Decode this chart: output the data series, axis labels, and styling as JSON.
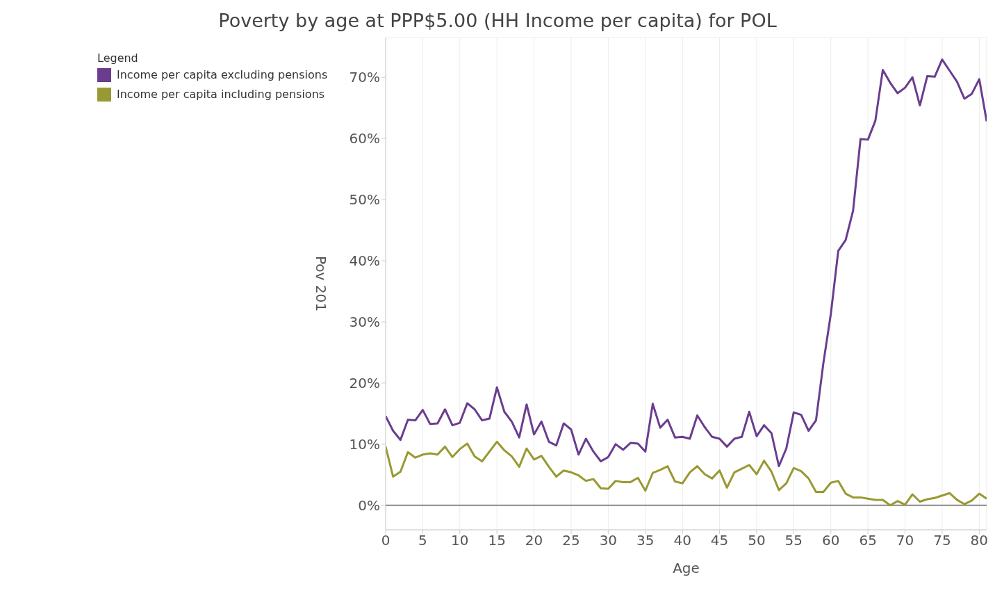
{
  "chart_data": {
    "type": "line",
    "title": "Poverty by age at PPP$5.00 (HH Income per capita) for POL",
    "xlabel": "Age",
    "ylabel": "Pov 201",
    "legend_title": "Legend",
    "legend": "top left",
    "grid": true,
    "marker": "none",
    "line_style": "solid",
    "x": [
      0,
      1,
      2,
      3,
      4,
      5,
      6,
      7,
      8,
      9,
      10,
      11,
      12,
      13,
      14,
      15,
      16,
      17,
      18,
      19,
      20,
      21,
      22,
      23,
      24,
      25,
      26,
      27,
      28,
      29,
      30,
      31,
      32,
      33,
      34,
      35,
      36,
      37,
      38,
      39,
      40,
      41,
      42,
      43,
      44,
      45,
      46,
      47,
      48,
      49,
      50,
      51,
      52,
      53,
      54,
      55,
      56,
      57,
      58,
      59,
      60,
      61,
      62,
      63,
      64,
      65,
      66,
      67,
      68,
      69,
      70,
      71,
      72,
      73,
      74,
      75,
      76,
      77,
      78,
      79,
      80,
      81
    ],
    "xlim": [
      0,
      81
    ],
    "xticks": [
      0,
      5,
      10,
      15,
      20,
      25,
      30,
      35,
      40,
      45,
      50,
      55,
      60,
      65,
      70,
      75,
      80
    ],
    "ylim": [
      -4,
      76.5
    ],
    "yticks": [
      {
        "value": 0,
        "label": "0%"
      },
      {
        "value": 10,
        "label": "10%"
      },
      {
        "value": 20,
        "label": "20%"
      },
      {
        "value": 30,
        "label": "30%"
      },
      {
        "value": 40,
        "label": "40%"
      },
      {
        "value": 50,
        "label": "50%"
      },
      {
        "value": 60,
        "label": "60%"
      },
      {
        "value": 70,
        "label": "70%"
      }
    ],
    "ref_lines": [
      {
        "axis": "y",
        "value": 0,
        "color": "#888888"
      }
    ],
    "series": [
      {
        "name": "Income per capita excluding pensions",
        "color": "#6a3d8f",
        "values": [
          14.6,
          12.2,
          10.7,
          14.0,
          13.9,
          15.6,
          13.3,
          13.4,
          15.7,
          13.1,
          13.5,
          16.7,
          15.7,
          13.9,
          14.2,
          19.3,
          15.3,
          13.7,
          11.1,
          16.5,
          11.6,
          13.7,
          10.4,
          9.8,
          13.4,
          12.4,
          8.3,
          10.9,
          8.8,
          7.2,
          7.9,
          10.0,
          9.1,
          10.2,
          10.1,
          8.8,
          16.6,
          12.7,
          14.0,
          11.1,
          11.2,
          10.9,
          14.7,
          12.8,
          11.2,
          10.9,
          9.6,
          10.9,
          11.2,
          15.3,
          11.3,
          13.1,
          11.8,
          6.4,
          9.3,
          15.2,
          14.8,
          12.2,
          13.9,
          23.3,
          31.3,
          41.6,
          43.4,
          48.2,
          59.9,
          59.8,
          62.9,
          71.2,
          69.1,
          67.4,
          68.3,
          70.0,
          65.4,
          70.2,
          70.1,
          72.9,
          71.1,
          69.3,
          66.5,
          67.3,
          69.7,
          62.8
        ]
      },
      {
        "name": "Income per capita including pensions",
        "color": "#999933",
        "values": [
          9.6,
          4.7,
          5.5,
          8.7,
          7.8,
          8.3,
          8.5,
          8.3,
          9.6,
          7.9,
          9.2,
          10.1,
          8.0,
          7.2,
          8.8,
          10.4,
          9.0,
          8.0,
          6.3,
          9.3,
          7.5,
          8.1,
          6.3,
          4.7,
          5.7,
          5.4,
          4.9,
          4.0,
          4.3,
          2.8,
          2.7,
          4.0,
          3.8,
          3.8,
          4.5,
          2.4,
          5.3,
          5.8,
          6.4,
          3.9,
          3.6,
          5.4,
          6.4,
          5.1,
          4.4,
          5.7,
          2.9,
          5.4,
          6.0,
          6.6,
          5.1,
          7.3,
          5.5,
          2.5,
          3.6,
          6.1,
          5.6,
          4.4,
          2.2,
          2.2,
          3.7,
          4.0,
          1.9,
          1.3,
          1.3,
          1.1,
          0.9,
          0.9,
          0.0,
          0.7,
          0.1,
          1.8,
          0.6,
          1.0,
          1.2,
          1.6,
          2.0,
          0.9,
          0.2,
          0.8,
          1.9,
          1.1
        ]
      }
    ]
  }
}
